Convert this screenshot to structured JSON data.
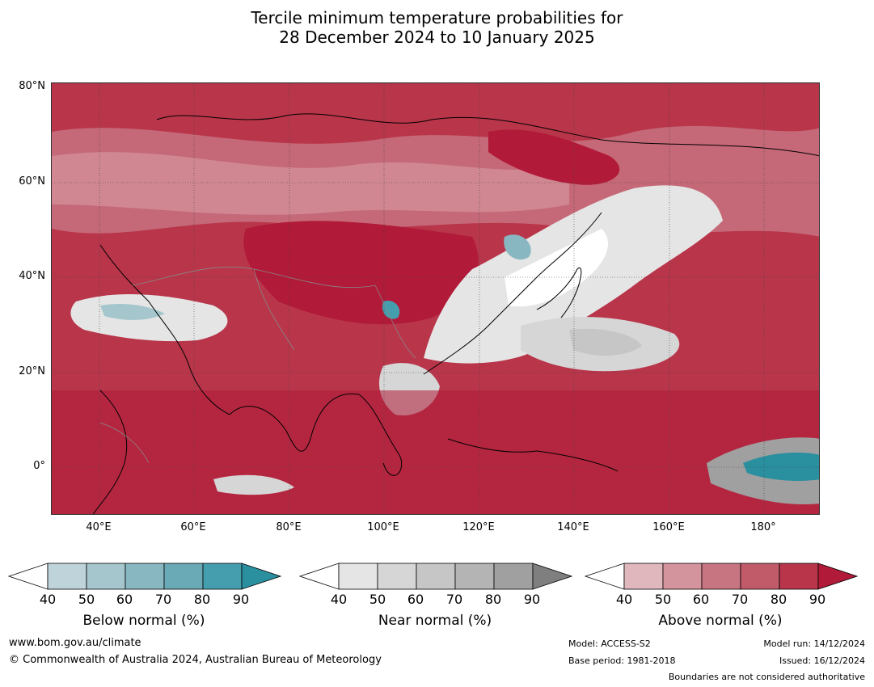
{
  "title": {
    "line1": "Tercile minimum temperature probabilities for",
    "line2": "28 December 2024 to 10 January 2025"
  },
  "map": {
    "lat_labels": [
      "80°N",
      "60°N",
      "40°N",
      "20°N",
      "0°"
    ],
    "lon_labels": [
      "40°E",
      "60°E",
      "80°E",
      "100°E",
      "120°E",
      "140°E",
      "160°E",
      "180°"
    ]
  },
  "colorbars": [
    {
      "title": "Below normal (%)",
      "ticks": [
        "40",
        "50",
        "60",
        "70",
        "80",
        "90"
      ],
      "colors": [
        "#bfd3da",
        "#a5c6cd",
        "#88b7c1",
        "#6aaab6",
        "#459ead",
        "#2a8f9f"
      ]
    },
    {
      "title": "Near normal (%)",
      "ticks": [
        "40",
        "50",
        "60",
        "70",
        "80",
        "90"
      ],
      "colors": [
        "#e5e5e5",
        "#d6d6d6",
        "#c6c6c6",
        "#b4b4b4",
        "#a0a0a0",
        "#7f7f7f"
      ]
    },
    {
      "title": "Above normal (%)",
      "ticks": [
        "40",
        "50",
        "60",
        "70",
        "80",
        "90"
      ],
      "colors": [
        "#e0b7bd",
        "#d4949d",
        "#c87582",
        "#c15b6a",
        "#b8354a",
        "#b11a38"
      ]
    }
  ],
  "footer": {
    "website": "www.bom.gov.au/climate",
    "copyright": "© Commonwealth of Australia 2024, Australian Bureau of Meteorology",
    "model": "Model: ACCESS-S2",
    "base_period": "Base period: 1981-2018",
    "model_run": "Model run: 14/12/2024",
    "issued": "Issued: 16/12/2024",
    "disclaimer": "Boundaries are not considered authoritative"
  }
}
